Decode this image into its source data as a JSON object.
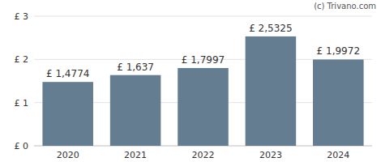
{
  "chart_data": {
    "type": "bar",
    "annotation": "(c) Trivano.com",
    "categories": [
      "2020",
      "2021",
      "2022",
      "2023",
      "2024"
    ],
    "values": [
      1.4774,
      1.637,
      1.7997,
      2.5325,
      1.9972
    ],
    "value_labels": [
      "£ 1,4774",
      "£ 1,637",
      "£ 1,7997",
      "£ 2,5325",
      "£ 1,9972"
    ],
    "data_labels": true,
    "color": "#657d91",
    "ylim": [
      0,
      3
    ],
    "yticks": [
      {
        "value": 0,
        "label": "£ 0"
      },
      {
        "value": 1,
        "label": "£ 1"
      },
      {
        "value": 2,
        "label": "£ 2"
      },
      {
        "value": 3,
        "label": "£ 3"
      }
    ],
    "grid": true
  }
}
